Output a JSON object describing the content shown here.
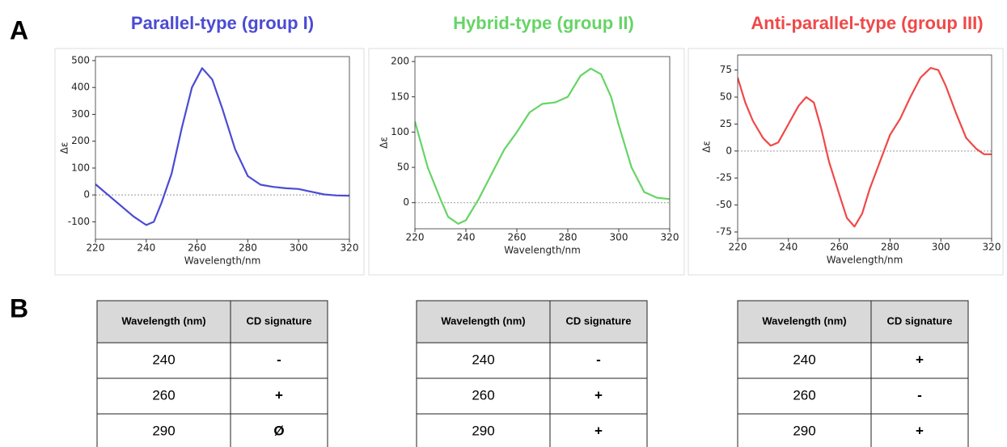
{
  "panels": [
    "A",
    "B"
  ],
  "chart_data": [
    {
      "type": "line",
      "title": "Parallel-type (group I)",
      "color": "#4b4bd4",
      "xlabel": "Wavelength/nm",
      "ylabel": "Δε",
      "x": [
        220,
        225,
        230,
        235,
        240,
        243,
        246,
        250,
        254,
        258,
        262,
        266,
        270,
        275,
        280,
        285,
        290,
        295,
        300,
        305,
        310,
        315,
        320
      ],
      "values": [
        40,
        0,
        -40,
        -80,
        -112,
        -100,
        -30,
        80,
        250,
        400,
        472,
        430,
        320,
        170,
        70,
        38,
        30,
        25,
        22,
        12,
        2,
        -2,
        -3
      ],
      "xlim": [
        220,
        320
      ],
      "xticks": [
        220,
        240,
        260,
        280,
        300,
        320
      ],
      "ylim": [
        -165,
        515
      ],
      "yticks": [
        -100,
        0,
        100,
        200,
        300,
        400,
        500
      ],
      "hline": 0
    },
    {
      "type": "line",
      "title": "Hybrid-type (group II)",
      "color": "#66d466",
      "xlabel": "Wavelength/nm",
      "ylabel": "Δε",
      "x": [
        220,
        225,
        230,
        233,
        237,
        240,
        245,
        250,
        255,
        260,
        265,
        270,
        275,
        280,
        285,
        289,
        293,
        297,
        300,
        305,
        310,
        315,
        320
      ],
      "values": [
        115,
        50,
        5,
        -20,
        -30,
        -25,
        5,
        40,
        75,
        100,
        128,
        140,
        142,
        150,
        180,
        190,
        182,
        150,
        110,
        50,
        15,
        7,
        5
      ],
      "xlim": [
        220,
        320
      ],
      "xticks": [
        220,
        240,
        260,
        280,
        300,
        320
      ],
      "ylim": [
        -37,
        207
      ],
      "yticks": [
        0,
        50,
        100,
        150,
        200
      ],
      "hline": 0
    },
    {
      "type": "line",
      "title": "Anti-parallel-type (group III)",
      "color": "#f04848",
      "xlabel": "Wavelength/nm",
      "ylabel": "Δε",
      "x": [
        220,
        223,
        226,
        230,
        233,
        236,
        240,
        244,
        247,
        250,
        253,
        256,
        260,
        263,
        266,
        269,
        272,
        276,
        280,
        284,
        288,
        292,
        296,
        299,
        302,
        306,
        310,
        314,
        317,
        320
      ],
      "values": [
        68,
        45,
        28,
        12,
        5,
        8,
        25,
        42,
        50,
        45,
        20,
        -10,
        -40,
        -62,
        -70,
        -58,
        -35,
        -10,
        15,
        30,
        50,
        68,
        77,
        75,
        60,
        35,
        12,
        2,
        -3,
        -3
      ],
      "xlim": [
        220,
        320
      ],
      "xticks": [
        220,
        240,
        260,
        280,
        300,
        320
      ],
      "ylim": [
        -81,
        89
      ],
      "yticks": [
        -75,
        -50,
        -25,
        0,
        25,
        50,
        75
      ],
      "hline": 0
    }
  ],
  "tables": [
    {
      "columns": [
        "Wavelength (nm)",
        "CD signature"
      ],
      "rows": [
        [
          "240",
          "-"
        ],
        [
          "260",
          "+"
        ],
        [
          "290",
          "Ø"
        ]
      ]
    },
    {
      "columns": [
        "Wavelength (nm)",
        "CD signature"
      ],
      "rows": [
        [
          "240",
          "-"
        ],
        [
          "260",
          "+"
        ],
        [
          "290",
          "+"
        ]
      ]
    },
    {
      "columns": [
        "Wavelength (nm)",
        "CD signature"
      ],
      "rows": [
        [
          "240",
          "+"
        ],
        [
          "260",
          "-"
        ],
        [
          "290",
          "+"
        ]
      ]
    }
  ]
}
